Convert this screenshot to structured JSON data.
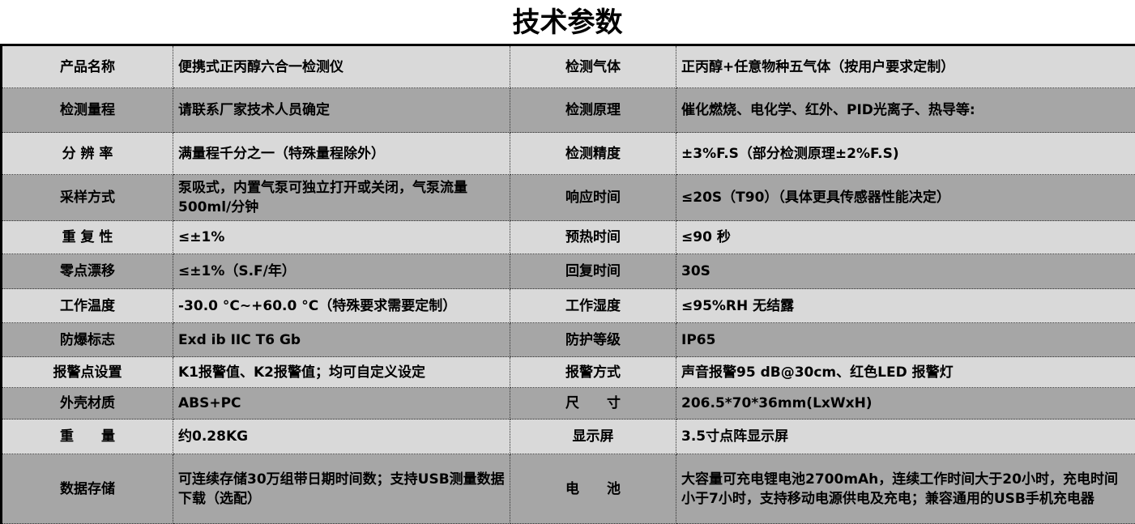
{
  "title": "技术参数",
  "colors": {
    "light_row": "#d9d9d9",
    "dark_row": "#a6a6a6"
  },
  "rows": [
    {
      "k1": "产品名称",
      "v1": "便携式正丙醇六合一检测仪",
      "k2": "检测气体",
      "v2": "正丙醇+任意物种五气体（按用户要求定制）"
    },
    {
      "k1": "检测量程",
      "v1": "请联系厂家技术人员确定",
      "k2": "检测原理",
      "v2": "催化燃烧、电化学、红外、PID光离子、热导等:"
    },
    {
      "k1": "分 辨 率",
      "v1": "满量程千分之一（特殊量程除外）",
      "k2": "检测精度",
      "v2": "±3%F.S（部分检测原理±2%F.S)"
    },
    {
      "k1": "采样方式",
      "v1": "泵吸式，内置气泵可独立打开或关闭，气泵流量500ml/分钟",
      "k2": "响应时间",
      "v2": "≤20S（T90）（具体更具传感器性能决定）"
    },
    {
      "k1": "重 复 性",
      "v1": "≤±1%",
      "k2": "预热时间",
      "v2": "≤90 秒"
    },
    {
      "k1": "零点漂移",
      "v1": "≤±1%（S.F/年）",
      "k2": "回复时间",
      "v2": "30S"
    },
    {
      "k1": "工作温度",
      "v1": "-30.0 °C~+60.0 °C（特殊要求需要定制）",
      "k2": "工作湿度",
      "v2": "≤95%RH 无结露"
    },
    {
      "k1": "防爆标志",
      "v1": "Exd ib IIC T6 Gb",
      "k2": "防护等级",
      "v2": "IP65"
    },
    {
      "k1": "报警点设置",
      "v1": "K1报警值、K2报警值；均可自定义设定",
      "k2": "报警方式",
      "v2": "声音报警95 dB@30cm、红色LED 报警灯"
    },
    {
      "k1": "外壳材质",
      "v1": "ABS+PC",
      "k2": "尺　　寸",
      "v2": "206.5*70*36mm(LxWxH)"
    },
    {
      "k1": "重　　量",
      "v1": "约0.28KG",
      "k2": "显示屏",
      "v2": "3.5寸点阵显示屏"
    },
    {
      "k1": "数据存储",
      "v1": "可连续存储30万组带日期时间数；支持USB测量数据下载（选配）",
      "k2": "电　　池",
      "v2": "大容量可充电锂电池2700mAh，连续工作时间大于20小时，充电时间小于7小时，支持移动电源供电及充电；兼容通用的USB手机充电器"
    }
  ]
}
